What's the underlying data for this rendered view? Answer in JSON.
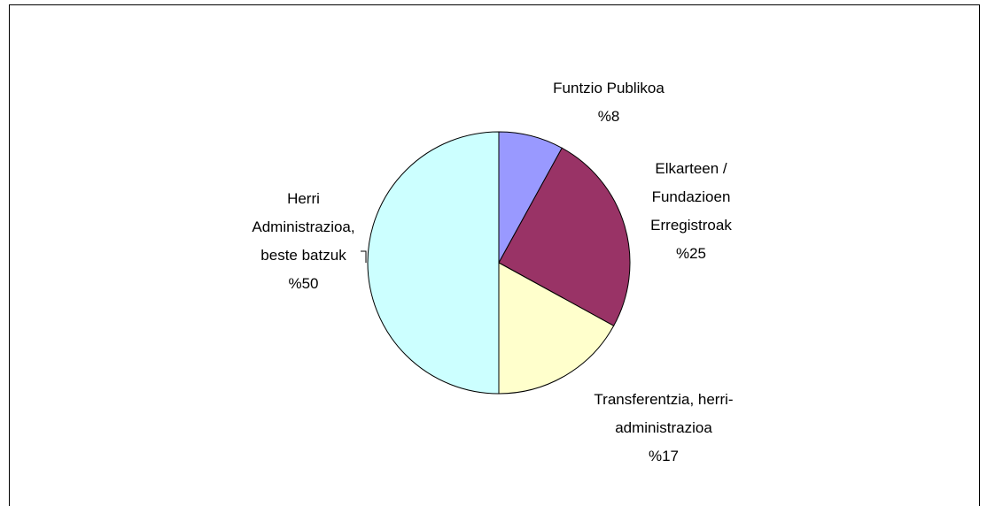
{
  "chart_data": {
    "type": "pie",
    "categories": [
      "Funtzio Publikoa",
      "Elkarteen / Fundazioen Erregistroak",
      "Transferentzia, herri-administrazioa",
      "Herri Administrazioa, beste batzuk"
    ],
    "values": [
      8,
      25,
      17,
      50
    ],
    "value_labels": [
      "%8",
      "%25",
      "%17",
      "%50"
    ],
    "colors": [
      "#9999ff",
      "#993366",
      "#ffffcc",
      "#ccffff"
    ]
  }
}
